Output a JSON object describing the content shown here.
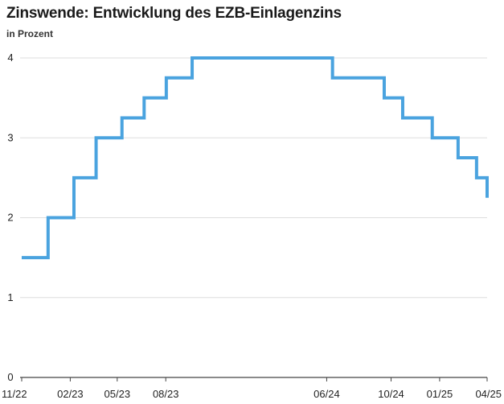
{
  "title": "Zinswende: Entwicklung des EZB-Einlagenzins",
  "subtitle": "in Prozent",
  "chart_data": {
    "type": "line",
    "step": true,
    "title": "Zinswende: Entwicklung des EZB-Einlagenzins",
    "subtitle": "in Prozent",
    "xlabel": "",
    "ylabel": "",
    "ylim": [
      0,
      4
    ],
    "xlim": [
      "2022-11-01",
      "2025-04-01"
    ],
    "grid": true,
    "legend": "none",
    "line_color": "#4aa3df",
    "y_ticks": [
      0,
      1,
      2,
      3,
      4
    ],
    "x_ticks": [
      {
        "label": "11/22",
        "date": "2022-11-01"
      },
      {
        "label": "02/23",
        "date": "2023-02-01"
      },
      {
        "label": "05/23",
        "date": "2023-05-01"
      },
      {
        "label": "08/23",
        "date": "2023-08-01"
      },
      {
        "label": "06/24",
        "date": "2024-06-01"
      },
      {
        "label": "10/24",
        "date": "2024-10-01"
      },
      {
        "label": "01/25",
        "date": "2025-01-01"
      },
      {
        "label": "04/25",
        "date": "2025-04-01"
      }
    ],
    "series": [
      {
        "points": [
          {
            "date": "2022-11-01",
            "value": 1.5
          },
          {
            "date": "2022-12-21",
            "value": 2.0
          },
          {
            "date": "2023-02-08",
            "value": 2.5
          },
          {
            "date": "2023-03-22",
            "value": 3.0
          },
          {
            "date": "2023-05-10",
            "value": 3.25
          },
          {
            "date": "2023-06-21",
            "value": 3.5
          },
          {
            "date": "2023-08-02",
            "value": 3.75
          },
          {
            "date": "2023-09-20",
            "value": 4.0
          },
          {
            "date": "2024-06-12",
            "value": 3.75
          },
          {
            "date": "2024-09-18",
            "value": 3.5
          },
          {
            "date": "2024-10-23",
            "value": 3.25
          },
          {
            "date": "2024-12-18",
            "value": 3.0
          },
          {
            "date": "2025-02-05",
            "value": 2.75
          },
          {
            "date": "2025-03-12",
            "value": 2.5
          },
          {
            "date": "2025-04-01",
            "value": 2.25
          }
        ]
      }
    ]
  }
}
